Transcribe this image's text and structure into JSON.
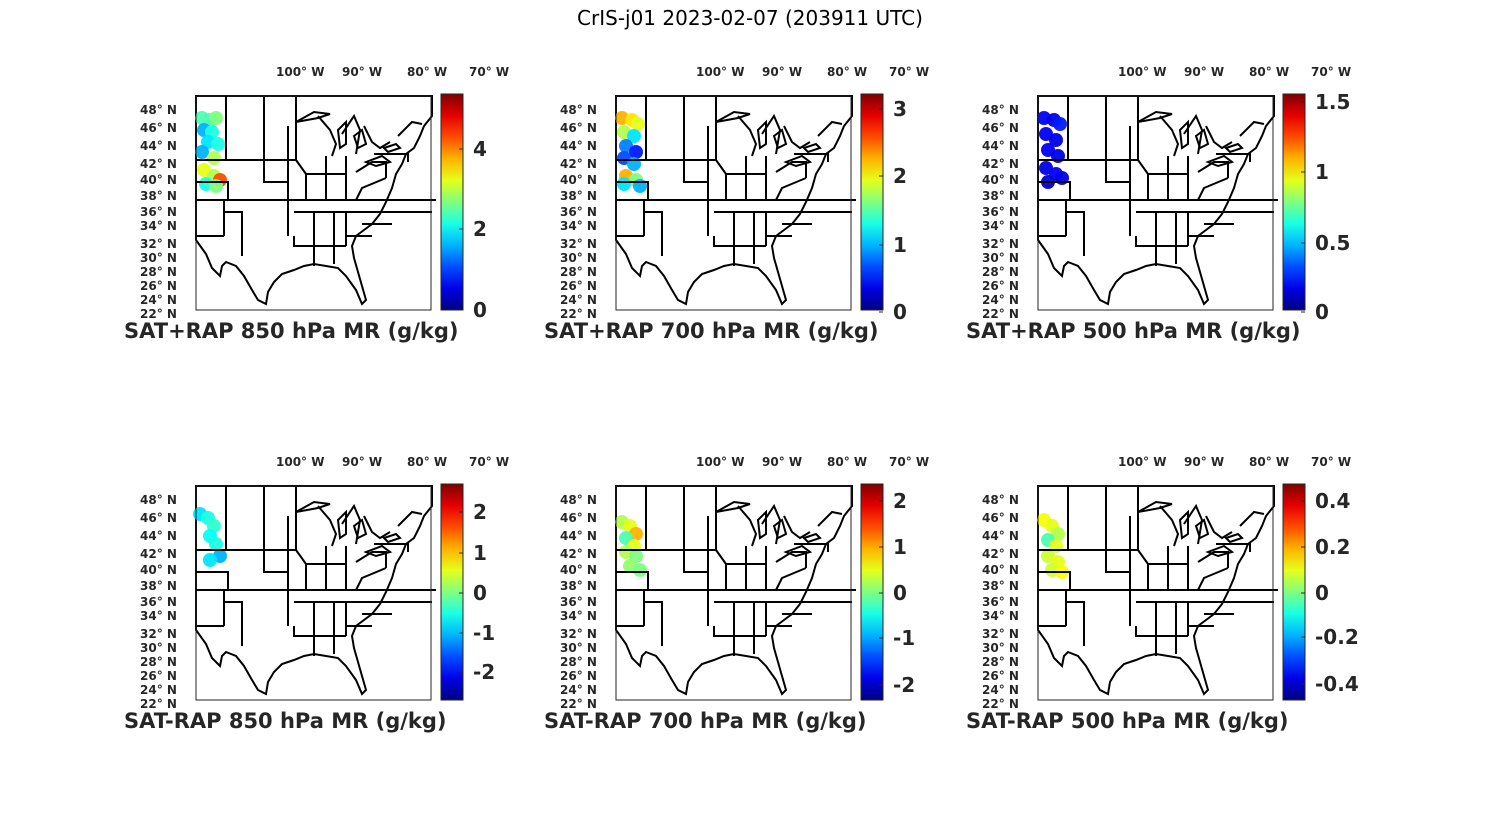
{
  "figure": {
    "title": "CrIS-j01 2023-02-07 (203911 UTC)"
  },
  "map": {
    "lon_labels": [
      "100° W",
      "90° W",
      "80° W",
      "70° W"
    ],
    "lat_labels": [
      "48° N",
      "46° N",
      "44° N",
      "42° N",
      "40° N",
      "38° N",
      "36° N",
      "34° N",
      "32° N",
      "30° N",
      "28° N",
      "26° N",
      "24° N",
      "22° N"
    ]
  },
  "colormap": "jet",
  "panels": [
    {
      "title": "SAT+RAP 850 hPa MR (g/kg)",
      "cbar_ticks": [
        "0",
        "2",
        "4"
      ],
      "cbar_range": [
        0,
        5.2
      ]
    },
    {
      "title": "SAT+RAP 700 hPa MR (g/kg)",
      "cbar_ticks": [
        "0",
        "1",
        "2",
        "3"
      ],
      "cbar_range": [
        0,
        3.2
      ]
    },
    {
      "title": "SAT+RAP 500 hPa MR (g/kg)",
      "cbar_ticks": [
        "0",
        "0.5",
        "1",
        "1.5"
      ],
      "cbar_range": [
        0,
        1.6
      ]
    },
    {
      "title": "SAT-RAP 850 hPa MR (g/kg)",
      "cbar_ticks": [
        "-2",
        "-1",
        "0",
        "1",
        "2"
      ],
      "cbar_range": [
        -2.6,
        2.6
      ]
    },
    {
      "title": "SAT-RAP 700 hPa MR (g/kg)",
      "cbar_ticks": [
        "-2",
        "-1",
        "0",
        "1",
        "2"
      ],
      "cbar_range": [
        -2.3,
        2.3
      ]
    },
    {
      "title": "SAT-RAP 500 hPa MR (g/kg)",
      "cbar_ticks": [
        "-0.4",
        "-0.2",
        "0",
        "0.2",
        "0.4"
      ],
      "cbar_range": [
        -0.48,
        0.48
      ]
    }
  ]
}
